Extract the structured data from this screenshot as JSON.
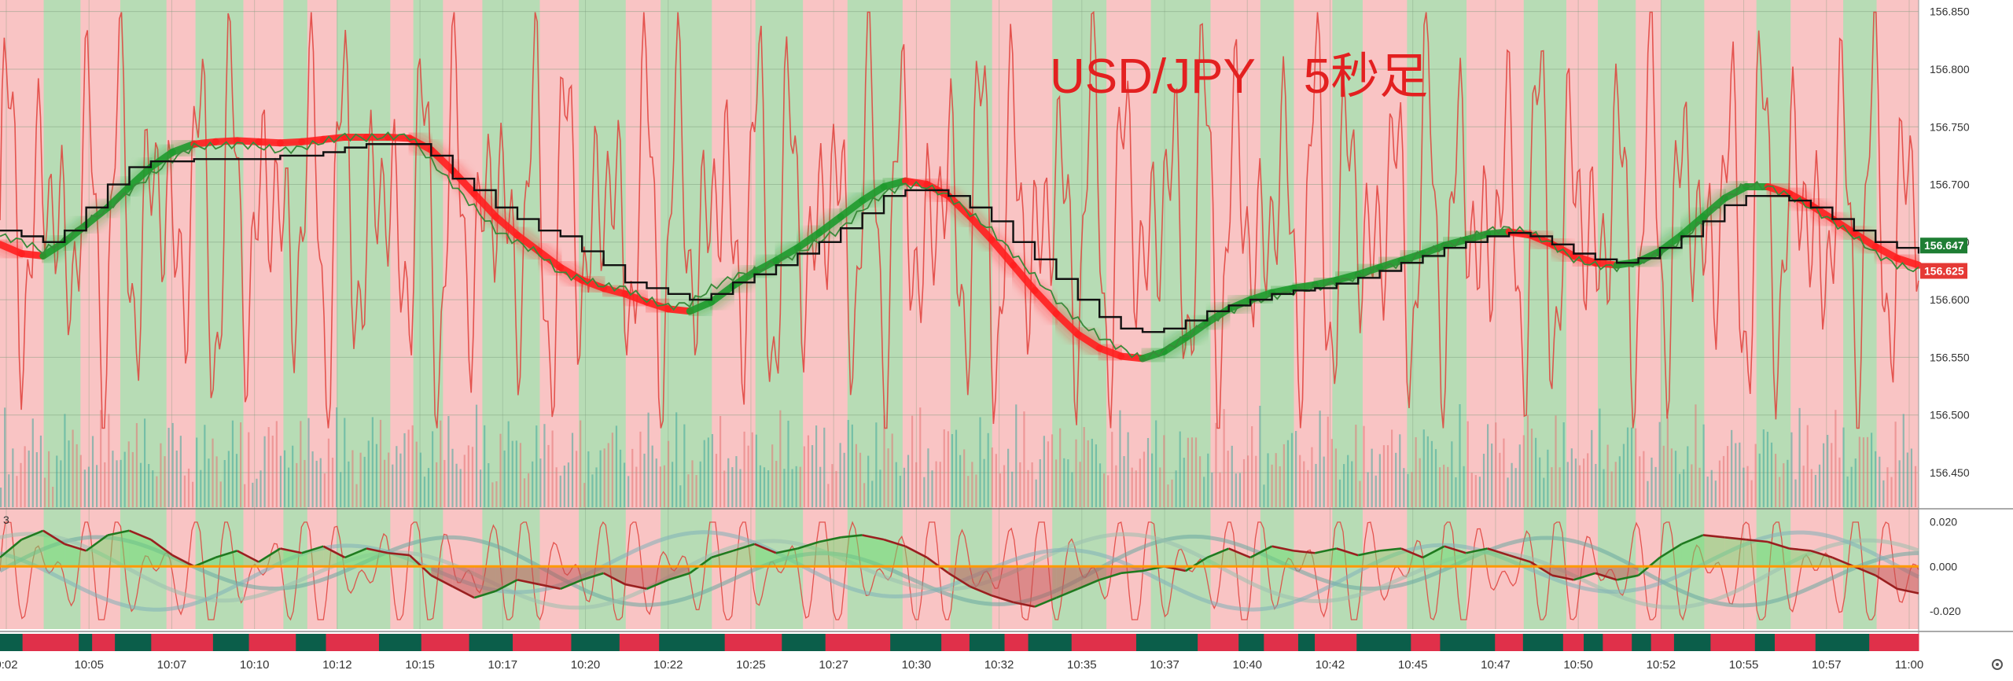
{
  "chart_data": [
    {
      "type": "line",
      "title": "USD/JPY　5秒足",
      "panel": "price",
      "y_axis": {
        "ticks": [
          "156.850",
          "156.800",
          "156.750",
          "156.700",
          "156.650",
          "156.600",
          "156.550",
          "156.500",
          "156.450"
        ],
        "ylim": [
          156.42,
          156.86
        ],
        "position": "right"
      },
      "x_axis": {
        "ticks": [
          "0:02",
          "10:05",
          "10:07",
          "10:10",
          "10:12",
          "10:15",
          "10:17",
          "10:20",
          "10:22",
          "10:25",
          "10:27",
          "10:30",
          "10:32",
          "10:35",
          "10:37",
          "10:40",
          "10:42",
          "10:45",
          "10:47",
          "10:50",
          "10:52",
          "10:55",
          "10:57",
          "11:00"
        ]
      },
      "price_badges": [
        {
          "value": "156.647",
          "color": "#1e7e34"
        },
        {
          "value": "156.625",
          "color": "#e53935"
        }
      ],
      "background_regime": {
        "colors": {
          "up": "#b7dcb5",
          "down": "#f9c4c4"
        },
        "segments": [
          "down",
          "up",
          "down",
          "up",
          "down",
          "up",
          "down",
          "up",
          "down",
          "up",
          "down",
          "up",
          "down",
          "up",
          "down",
          "up",
          "down",
          "up",
          "down",
          "up",
          "down",
          "up",
          "down",
          "up",
          "down",
          "up",
          "down",
          "up",
          "down",
          "up",
          "down",
          "up",
          "down",
          "up",
          "down",
          "up",
          "down",
          "up",
          "down",
          "up",
          "down",
          "up",
          "down",
          "up",
          "down"
        ]
      },
      "series": [
        {
          "role": "price",
          "color": "#3a8a3a",
          "values": [
            156.655,
            156.651,
            156.642,
            156.652,
            156.667,
            156.679,
            156.694,
            156.708,
            156.722,
            156.733,
            156.733,
            156.735,
            156.733,
            156.729,
            156.732,
            156.737,
            156.742,
            156.74,
            156.742,
            156.742,
            156.72,
            156.7,
            156.68,
            156.66,
            156.65,
            156.64,
            156.623,
            156.618,
            156.612,
            156.61,
            156.6,
            156.594,
            156.597,
            156.61,
            156.62,
            156.625,
            156.632,
            156.64,
            156.651,
            156.661,
            156.678,
            156.692,
            156.7,
            156.698,
            156.69,
            156.675,
            156.66,
            156.64,
            156.62,
            156.6,
            156.582,
            156.568,
            156.558,
            156.548,
            156.556,
            156.568,
            156.58,
            156.59,
            156.597,
            156.603,
            156.607,
            156.61,
            156.615,
            156.62,
            156.627,
            156.632,
            156.64,
            156.647,
            156.652,
            156.66,
            156.662,
            156.658,
            156.648,
            156.635,
            156.63,
            156.628,
            156.632,
            156.64,
            156.652,
            156.668,
            156.688,
            156.7,
            156.698,
            156.69,
            156.68,
            156.668,
            156.655,
            156.64,
            156.63,
            156.625
          ]
        },
        {
          "role": "step-average",
          "color": "#111111",
          "values": [
            156.66,
            156.655,
            156.65,
            156.66,
            156.68,
            156.7,
            156.715,
            156.72,
            156.72,
            156.722,
            156.722,
            156.722,
            156.722,
            156.725,
            156.725,
            156.728,
            156.732,
            156.735,
            156.735,
            156.735,
            156.725,
            156.705,
            156.695,
            156.68,
            156.67,
            156.66,
            156.655,
            156.642,
            156.63,
            156.615,
            156.61,
            156.605,
            156.6,
            156.605,
            156.615,
            156.622,
            156.63,
            156.64,
            156.65,
            156.662,
            156.675,
            156.69,
            156.695,
            156.695,
            156.69,
            156.68,
            156.668,
            156.65,
            156.635,
            156.618,
            156.6,
            156.585,
            156.575,
            156.572,
            156.575,
            156.582,
            156.59,
            156.595,
            156.6,
            156.605,
            156.608,
            156.61,
            156.614,
            156.619,
            156.625,
            156.632,
            156.638,
            156.645,
            156.65,
            156.655,
            156.658,
            156.655,
            156.648,
            156.64,
            156.635,
            156.632,
            156.636,
            156.645,
            156.655,
            156.668,
            156.682,
            156.69,
            156.69,
            156.686,
            156.68,
            156.67,
            156.66,
            156.65,
            156.645,
            156.64
          ]
        },
        {
          "role": "smoothed-average",
          "values": [
            156.648,
            156.64,
            156.638,
            156.65,
            156.665,
            156.68,
            156.698,
            156.715,
            156.728,
            156.735,
            156.737,
            156.738,
            156.737,
            156.736,
            156.737,
            156.739,
            156.741,
            156.741,
            156.741,
            156.74,
            156.73,
            156.712,
            156.692,
            156.672,
            156.656,
            156.642,
            156.628,
            156.617,
            156.61,
            156.605,
            156.598,
            156.592,
            156.59,
            156.598,
            156.612,
            156.624,
            156.634,
            156.645,
            156.658,
            156.672,
            156.686,
            156.698,
            156.703,
            156.7,
            156.69,
            156.672,
            156.652,
            156.63,
            156.608,
            156.588,
            156.57,
            156.558,
            156.551,
            156.549,
            156.555,
            156.567,
            156.58,
            156.592,
            156.6,
            156.606,
            156.61,
            156.613,
            156.617,
            156.622,
            156.628,
            156.634,
            156.64,
            156.647,
            156.652,
            156.657,
            156.659,
            156.656,
            156.648,
            156.638,
            156.632,
            156.63,
            156.633,
            156.642,
            156.656,
            156.672,
            156.688,
            156.698,
            156.698,
            156.692,
            156.682,
            156.67,
            156.658,
            156.646,
            156.636,
            156.63
          ],
          "trend": [
            "down",
            "down",
            "up",
            "up",
            "up",
            "up",
            "up",
            "up",
            "up",
            "down",
            "down",
            "down",
            "down",
            "down",
            "down",
            "down",
            "down",
            "down",
            "down",
            "down",
            "down",
            "down",
            "down",
            "down",
            "down",
            "down",
            "down",
            "down",
            "down",
            "down",
            "down",
            "down",
            "up",
            "up",
            "up",
            "up",
            "up",
            "up",
            "up",
            "up",
            "up",
            "up",
            "down",
            "down",
            "down",
            "down",
            "down",
            "down",
            "down",
            "down",
            "down",
            "down",
            "down",
            "up",
            "up",
            "up",
            "up",
            "up",
            "up",
            "up",
            "up",
            "up",
            "up",
            "up",
            "up",
            "up",
            "up",
            "up",
            "up",
            "up",
            "down",
            "down",
            "down",
            "down",
            "down",
            "up",
            "up",
            "up",
            "up",
            "up",
            "up",
            "up",
            "down",
            "down",
            "down",
            "down",
            "down",
            "down",
            "down",
            "down"
          ]
        }
      ]
    },
    {
      "type": "line",
      "panel": "oscillator",
      "legend_text": "3",
      "y_axis": {
        "ticks": [
          "0.020",
          "0.000",
          "-0.020"
        ],
        "ylim": [
          -0.028,
          0.024
        ],
        "position": "right"
      },
      "zero_line_color": "#ff9900",
      "series": [
        {
          "role": "oscillator",
          "values": [
            0.004,
            0.012,
            0.016,
            0.01,
            0.007,
            0.014,
            0.016,
            0.012,
            0.005,
            0.0,
            0.004,
            0.007,
            0.002,
            0.008,
            0.006,
            0.009,
            0.004,
            0.008,
            0.006,
            0.005,
            -0.004,
            -0.009,
            -0.014,
            -0.011,
            -0.006,
            -0.008,
            -0.01,
            -0.006,
            -0.003,
            -0.008,
            -0.01,
            -0.006,
            -0.003,
            0.004,
            0.007,
            0.01,
            0.006,
            0.008,
            0.011,
            0.013,
            0.014,
            0.012,
            0.009,
            0.004,
            -0.003,
            -0.009,
            -0.013,
            -0.016,
            -0.018,
            -0.014,
            -0.01,
            -0.006,
            -0.003,
            -0.002,
            0.0,
            -0.002,
            0.004,
            0.008,
            0.004,
            0.009,
            0.007,
            0.006,
            0.008,
            0.005,
            0.007,
            0.008,
            0.004,
            0.009,
            0.006,
            0.008,
            0.005,
            0.002,
            -0.004,
            -0.006,
            -0.003,
            -0.006,
            -0.004,
            0.004,
            0.01,
            0.014,
            0.013,
            0.012,
            0.011,
            0.008,
            0.007,
            0.004,
            0.0,
            -0.004,
            -0.01,
            -0.012
          ]
        }
      ]
    },
    {
      "type": "heatmap",
      "panel": "trend-strip",
      "colors": {
        "up": "#0b5e4a",
        "down": "#e0304a"
      },
      "segments": [
        "up",
        "down",
        "up",
        "down",
        "up",
        "down",
        "up",
        "down",
        "up",
        "down",
        "up",
        "down",
        "up",
        "down",
        "up",
        "down",
        "up",
        "down",
        "up",
        "down",
        "up",
        "down",
        "up",
        "down",
        "up",
        "down",
        "up",
        "down",
        "up",
        "down",
        "up",
        "down",
        "up",
        "down",
        "up",
        "down",
        "up",
        "down",
        "up",
        "down",
        "up",
        "down",
        "up",
        "down",
        "up",
        "down",
        "up",
        "down"
      ]
    }
  ],
  "ui": {
    "settings_icon": "gear-icon",
    "oscillator_collapse_icon": "chevron-icon"
  }
}
